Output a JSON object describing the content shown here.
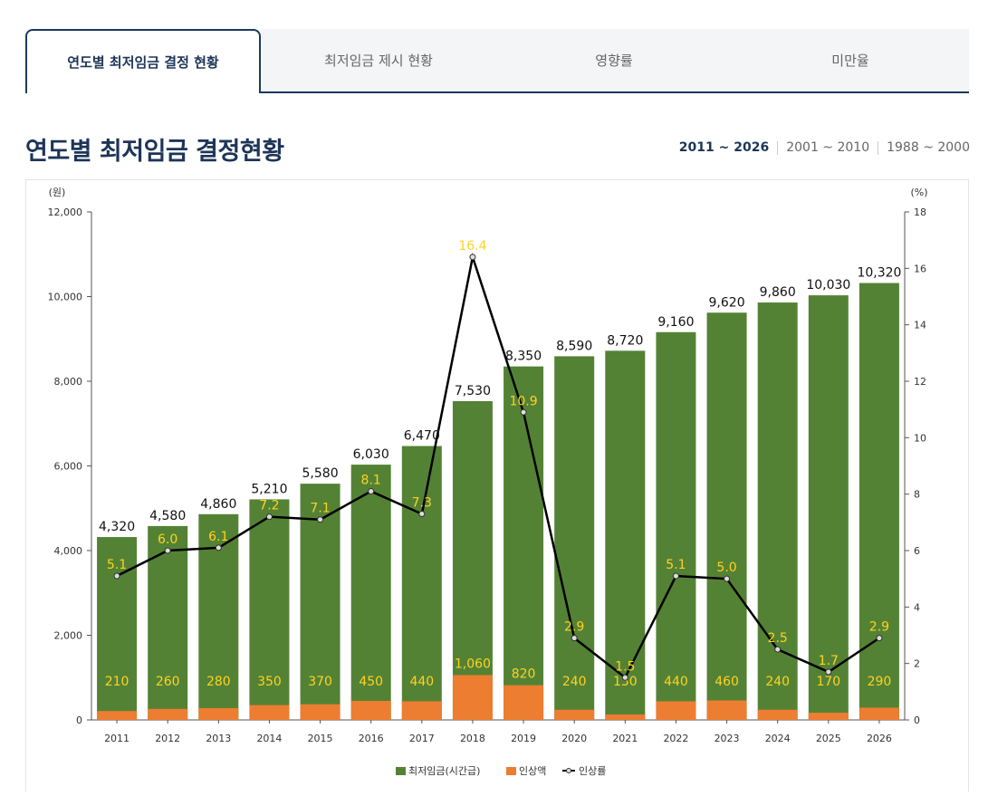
{
  "tabs": [
    {
      "label": "연도별 최저임금 결정 현황",
      "active": true
    },
    {
      "label": "최저임금 제시 현황",
      "active": false
    },
    {
      "label": "영향률",
      "active": false
    },
    {
      "label": "미만율",
      "active": false
    }
  ],
  "page_title": "연도별 최저임금 결정현황",
  "ranges": [
    "2011 ~ 2026",
    "2001 ~ 2010",
    "1988 ~ 2000"
  ],
  "colors": {
    "wage": "#548235",
    "increase": "#ed7d31",
    "rate_line": "#000000",
    "rate_label": "#ffd21f",
    "title": "#1d3557"
  },
  "chart_data": {
    "type": "bar",
    "categories": [
      "2011",
      "2012",
      "2013",
      "2014",
      "2015",
      "2016",
      "2017",
      "2018",
      "2019",
      "2020",
      "2021",
      "2022",
      "2023",
      "2024",
      "2025",
      "2026"
    ],
    "series": [
      {
        "name": "최저임금(시간급)",
        "values": [
          4320,
          4580,
          4860,
          5210,
          5580,
          6030,
          6470,
          7530,
          8350,
          8590,
          8720,
          9160,
          9620,
          9860,
          10030,
          10320
        ],
        "labels": [
          "4,320",
          "4,580",
          "4,860",
          "5,210",
          "5,580",
          "6,030",
          "6,470",
          "7,530",
          "8,350",
          "8,590",
          "8,720",
          "9,160",
          "9,620",
          "9,860",
          "10,030",
          "10,320"
        ]
      },
      {
        "name": "인상액",
        "values": [
          210,
          260,
          280,
          350,
          370,
          450,
          440,
          1060,
          820,
          240,
          130,
          440,
          460,
          240,
          170,
          290
        ],
        "labels": [
          "210",
          "260",
          "280",
          "350",
          "370",
          "450",
          "440",
          "1,060",
          "820",
          "240",
          "130",
          "440",
          "460",
          "240",
          "170",
          "290"
        ]
      },
      {
        "name": "인상률",
        "type": "line",
        "axis": "right",
        "values": [
          5.1,
          6.0,
          6.1,
          7.2,
          7.1,
          8.1,
          7.3,
          16.4,
          10.9,
          2.9,
          1.5,
          5.1,
          5.0,
          2.5,
          1.7,
          2.9
        ],
        "labels": [
          "5.1",
          "6.0",
          "6.1",
          "7.2",
          "7.1",
          "8.1",
          "7.3",
          "16.4",
          "10.9",
          "2.9",
          "1.5",
          "5.1",
          "5.0",
          "2.5",
          "1.7",
          "2.9"
        ]
      }
    ],
    "left_axis": {
      "unit": "(원)",
      "ylim": [
        0,
        12000
      ],
      "ticks": [
        0,
        2000,
        4000,
        6000,
        8000,
        10000,
        12000
      ],
      "tick_labels": [
        "0",
        "2,000",
        "4,000",
        "6,000",
        "8,000",
        "10,000",
        "12,000"
      ]
    },
    "right_axis": {
      "unit": "(%)",
      "ylim": [
        0,
        18
      ],
      "ticks": [
        0,
        2,
        4,
        6,
        8,
        10,
        12,
        14,
        16,
        18
      ],
      "tick_labels": [
        "0",
        "2",
        "4",
        "6",
        "8",
        "10",
        "12",
        "14",
        "16",
        "18"
      ]
    },
    "legend": [
      "최저임금(시간급)",
      "인상액",
      "인상률"
    ],
    "legend_position": "bottom-center"
  }
}
